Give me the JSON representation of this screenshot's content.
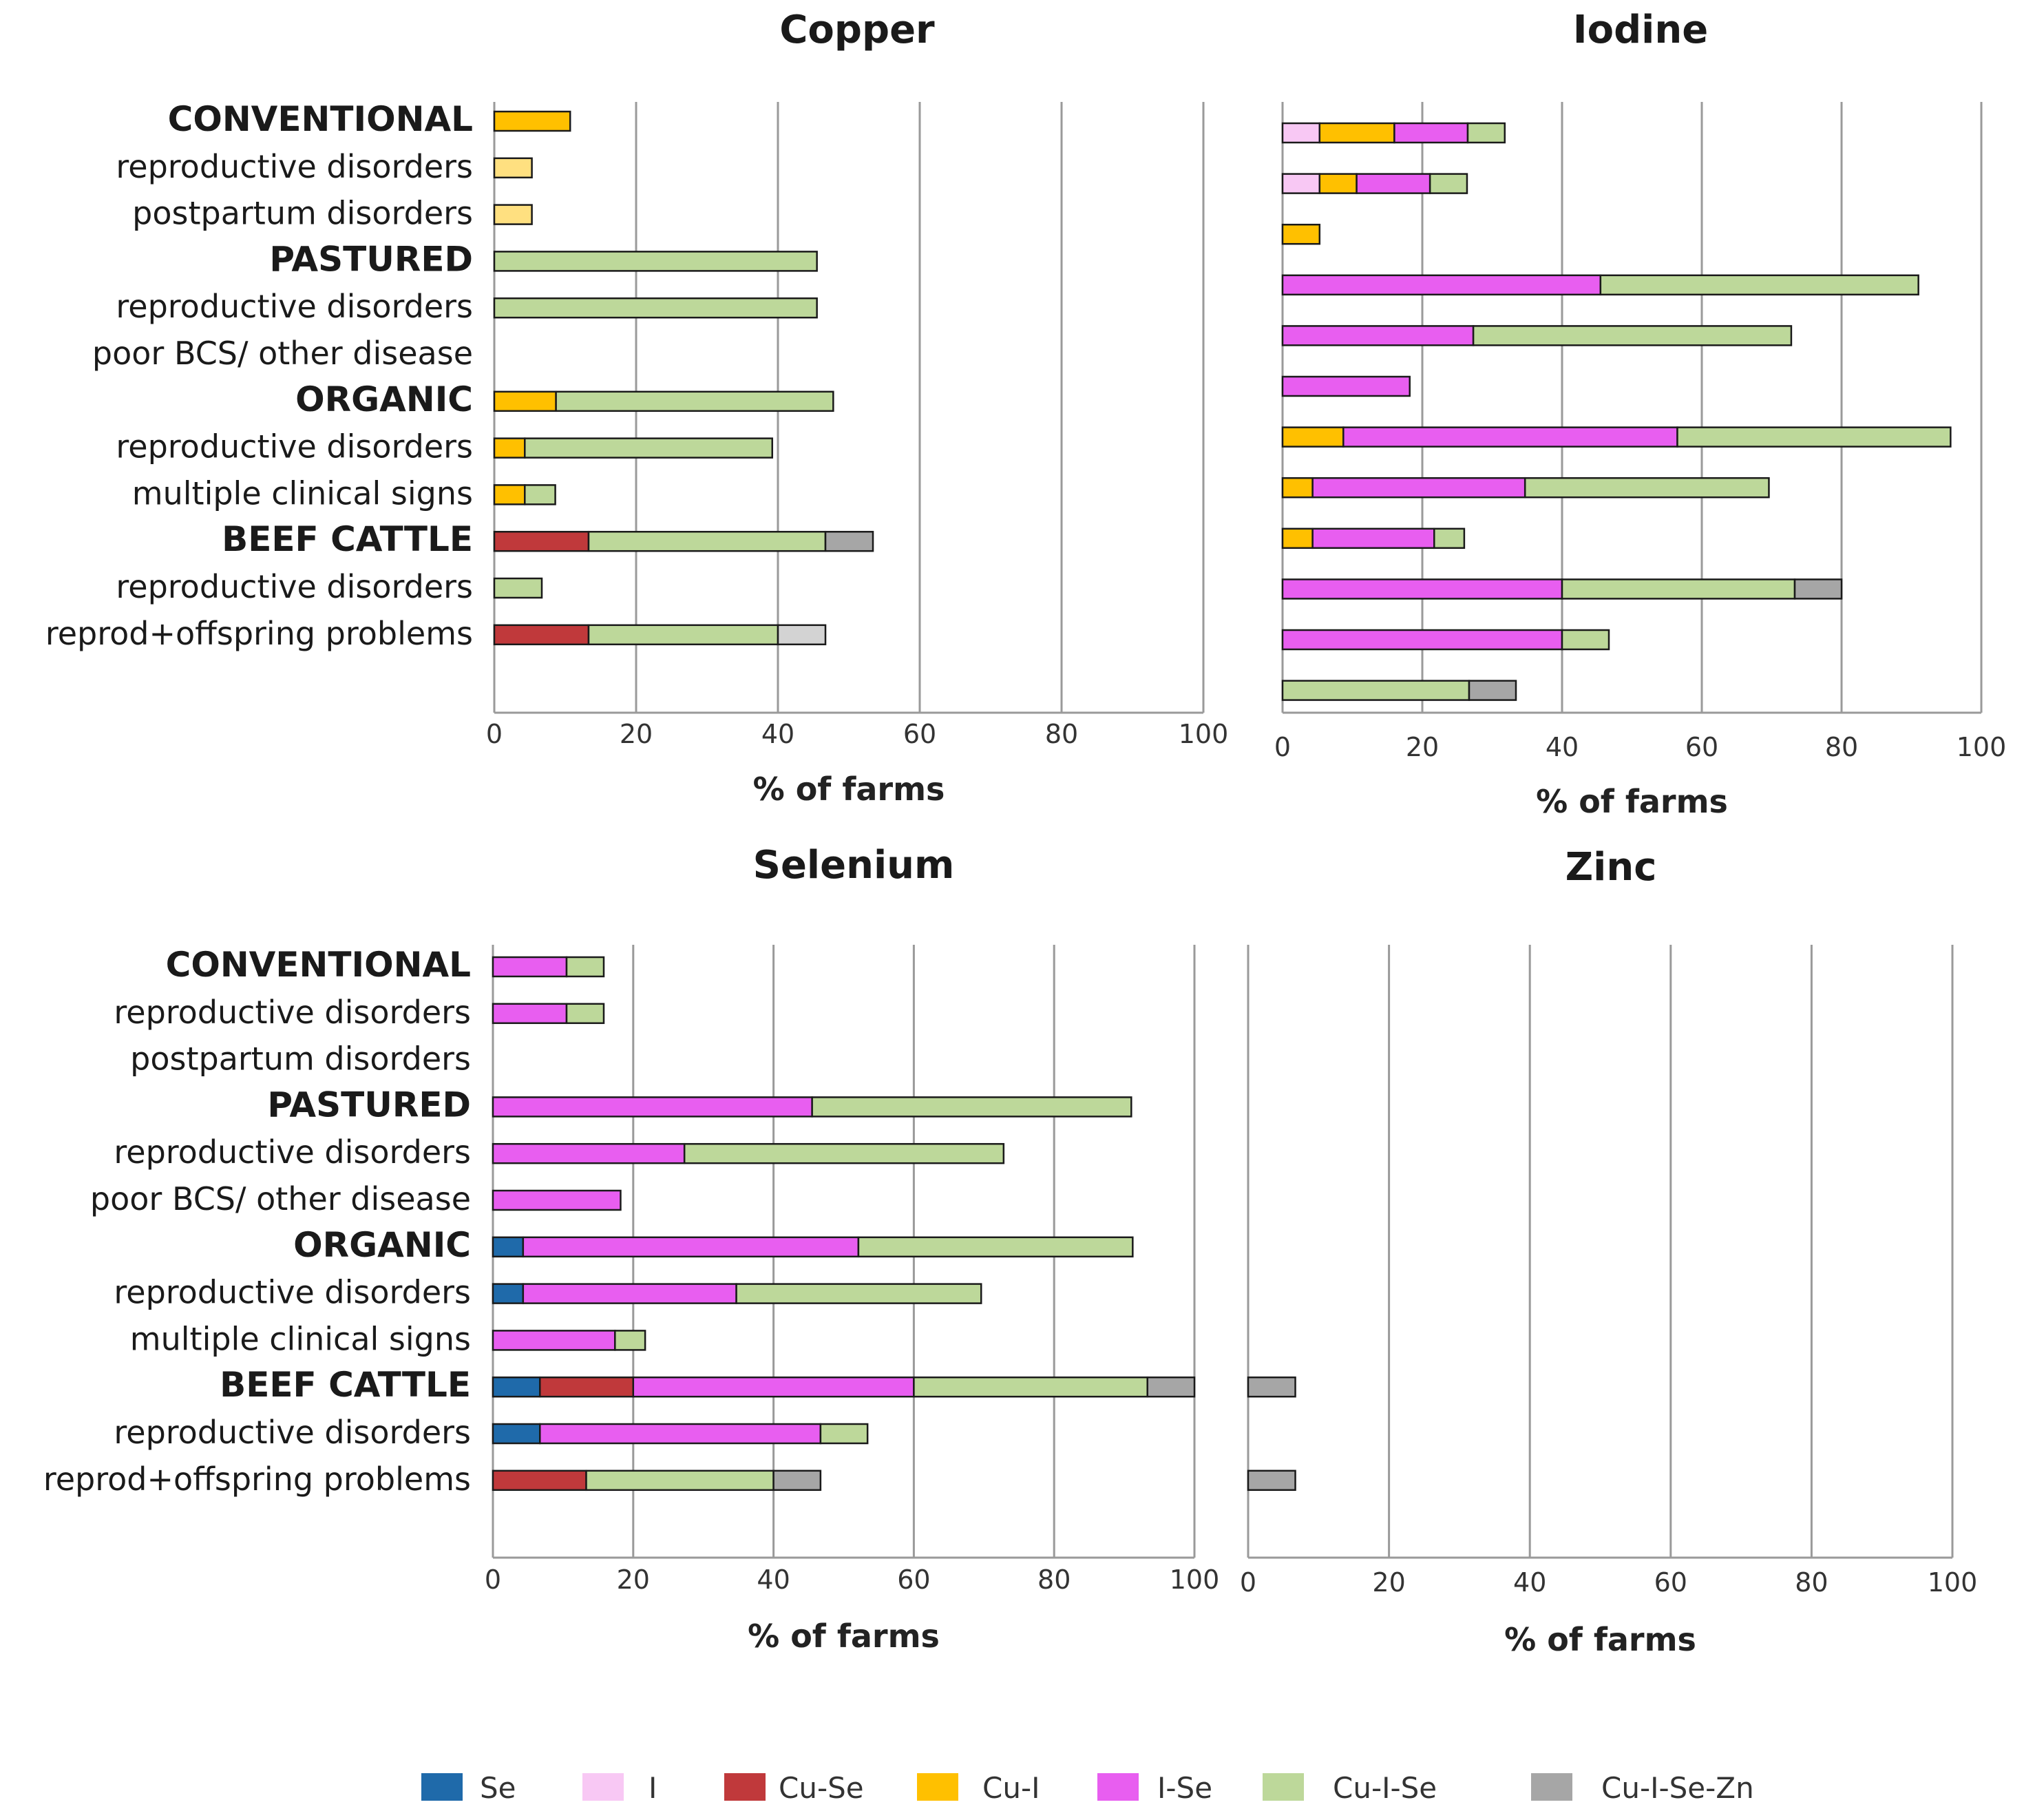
{
  "chart_data": {
    "type": "bar",
    "orientation": "horizontal",
    "stacked": true,
    "xlim": [
      0,
      100
    ],
    "xticks": [
      0,
      20,
      40,
      60,
      80,
      100
    ],
    "xlabel": "% of farms",
    "grid": true,
    "legend_position": "bottom",
    "series": [
      {
        "name": "Se",
        "color": "#1f6aaa"
      },
      {
        "name": "I",
        "color": "#f8c8f4"
      },
      {
        "name": "Cu-Se",
        "color": "#c0393b"
      },
      {
        "name": "Cu-I",
        "color": "#ffc000"
      },
      {
        "name": "I-Se",
        "color": "#e85ef0"
      },
      {
        "name": "Cu-I-Se",
        "color": "#bdd89a"
      },
      {
        "name": "Cu-I-Se-Zn",
        "color": "#a6a6a6"
      }
    ],
    "categories": [
      {
        "label": "CONVENTIONAL",
        "group": true
      },
      {
        "label": "reproductive disorders",
        "group": false
      },
      {
        "label": "postpartum disorders",
        "group": false
      },
      {
        "label": "PASTURED",
        "group": true
      },
      {
        "label": "reproductive disorders",
        "group": false
      },
      {
        "label": "poor BCS/ other disease",
        "group": false
      },
      {
        "label": "ORGANIC",
        "group": true
      },
      {
        "label": "reproductive disorders",
        "group": false
      },
      {
        "label": "multiple clinical signs",
        "group": false
      },
      {
        "label": "BEEF CATTLE",
        "group": true
      },
      {
        "label": "reproductive disorders",
        "group": false
      },
      {
        "label": "reprod+offspring problems",
        "group": false
      }
    ],
    "panels": [
      {
        "title": "Copper",
        "show_category_labels": true,
        "bars": [
          [
            {
              "s": "Cu-I",
              "v": 10.7
            }
          ],
          [
            {
              "s": "Cu-I",
              "v": 5.3,
              "light": true
            }
          ],
          [
            {
              "s": "Cu-I",
              "v": 5.3,
              "light": true
            }
          ],
          [
            {
              "s": "Cu-I-Se",
              "v": 45.5
            }
          ],
          [
            {
              "s": "Cu-I-Se",
              "v": 45.5
            }
          ],
          [],
          [
            {
              "s": "Cu-I",
              "v": 8.7
            },
            {
              "s": "Cu-I-Se",
              "v": 39.1
            }
          ],
          [
            {
              "s": "Cu-I",
              "v": 4.3
            },
            {
              "s": "Cu-I-Se",
              "v": 34.9
            }
          ],
          [
            {
              "s": "Cu-I",
              "v": 4.3
            },
            {
              "s": "Cu-I-Se",
              "v": 4.3
            }
          ],
          [
            {
              "s": "Cu-Se",
              "v": 13.3
            },
            {
              "s": "Cu-I-Se",
              "v": 33.4
            },
            {
              "s": "Cu-I-Se-Zn",
              "v": 6.7
            }
          ],
          [
            {
              "s": "Cu-I-Se",
              "v": 6.7
            }
          ],
          [
            {
              "s": "Cu-Se",
              "v": 13.3
            },
            {
              "s": "Cu-I-Se",
              "v": 26.7
            },
            {
              "s": "Cu-I-Se-Zn",
              "v": 6.7,
              "light": true
            }
          ]
        ]
      },
      {
        "title": "Iodine",
        "show_category_labels": false,
        "bars": [
          [
            {
              "s": "I",
              "v": 5.3
            },
            {
              "s": "Cu-I",
              "v": 10.7
            },
            {
              "s": "I-Se",
              "v": 10.5
            },
            {
              "s": "Cu-I-Se",
              "v": 5.3
            }
          ],
          [
            {
              "s": "I",
              "v": 5.3
            },
            {
              "s": "Cu-I",
              "v": 5.3
            },
            {
              "s": "I-Se",
              "v": 10.5
            },
            {
              "s": "Cu-I-Se",
              "v": 5.3
            }
          ],
          [
            {
              "s": "Cu-I",
              "v": 5.3
            }
          ],
          [
            {
              "s": "I-Se",
              "v": 45.5
            },
            {
              "s": "Cu-I-Se",
              "v": 45.5
            }
          ],
          [
            {
              "s": "I-Se",
              "v": 27.3
            },
            {
              "s": "Cu-I-Se",
              "v": 45.5
            }
          ],
          [
            {
              "s": "I-Se",
              "v": 18.2
            }
          ],
          [
            {
              "s": "Cu-I",
              "v": 8.7
            },
            {
              "s": "I-Se",
              "v": 47.8
            },
            {
              "s": "Cu-I-Se",
              "v": 39.1
            }
          ],
          [
            {
              "s": "Cu-I",
              "v": 4.3
            },
            {
              "s": "I-Se",
              "v": 30.4
            },
            {
              "s": "Cu-I-Se",
              "v": 34.9
            }
          ],
          [
            {
              "s": "Cu-I",
              "v": 4.3
            },
            {
              "s": "I-Se",
              "v": 17.4
            },
            {
              "s": "Cu-I-Se",
              "v": 4.3
            }
          ],
          [
            {
              "s": "I-Se",
              "v": 40.0
            },
            {
              "s": "Cu-I-Se",
              "v": 33.3
            },
            {
              "s": "Cu-I-Se-Zn",
              "v": 6.7
            }
          ],
          [
            {
              "s": "I-Se",
              "v": 40.0
            },
            {
              "s": "Cu-I-Se",
              "v": 6.7
            }
          ],
          [
            {
              "s": "Cu-I-Se",
              "v": 26.7
            },
            {
              "s": "Cu-I-Se-Zn",
              "v": 6.7
            }
          ]
        ]
      },
      {
        "title": "Selenium",
        "show_category_labels": true,
        "bars": [
          [
            {
              "s": "I-Se",
              "v": 10.5
            },
            {
              "s": "Cu-I-Se",
              "v": 5.3
            }
          ],
          [
            {
              "s": "I-Se",
              "v": 10.5
            },
            {
              "s": "Cu-I-Se",
              "v": 5.3
            }
          ],
          [],
          [
            {
              "s": "I-Se",
              "v": 45.5
            },
            {
              "s": "Cu-I-Se",
              "v": 45.5
            }
          ],
          [
            {
              "s": "I-Se",
              "v": 27.3
            },
            {
              "s": "Cu-I-Se",
              "v": 45.5
            }
          ],
          [
            {
              "s": "I-Se",
              "v": 18.2
            }
          ],
          [
            {
              "s": "Se",
              "v": 4.3
            },
            {
              "s": "I-Se",
              "v": 47.8
            },
            {
              "s": "Cu-I-Se",
              "v": 39.1
            }
          ],
          [
            {
              "s": "Se",
              "v": 4.3
            },
            {
              "s": "I-Se",
              "v": 30.4
            },
            {
              "s": "Cu-I-Se",
              "v": 34.9
            }
          ],
          [
            {
              "s": "I-Se",
              "v": 17.4
            },
            {
              "s": "Cu-I-Se",
              "v": 4.3
            }
          ],
          [
            {
              "s": "Se",
              "v": 6.7
            },
            {
              "s": "Cu-Se",
              "v": 13.3
            },
            {
              "s": "I-Se",
              "v": 40.0
            },
            {
              "s": "Cu-I-Se",
              "v": 33.3
            },
            {
              "s": "Cu-I-Se-Zn",
              "v": 6.7
            }
          ],
          [
            {
              "s": "Se",
              "v": 6.7
            },
            {
              "s": "I-Se",
              "v": 40.0
            },
            {
              "s": "Cu-I-Se",
              "v": 6.7
            }
          ],
          [
            {
              "s": "Cu-Se",
              "v": 13.3
            },
            {
              "s": "Cu-I-Se",
              "v": 26.7
            },
            {
              "s": "Cu-I-Se-Zn",
              "v": 6.7
            }
          ]
        ]
      },
      {
        "title": "Zinc",
        "show_category_labels": false,
        "bars": [
          [],
          [],
          [],
          [],
          [],
          [],
          [],
          [],
          [],
          [
            {
              "s": "Cu-I-Se-Zn",
              "v": 6.7
            }
          ],
          [],
          [
            {
              "s": "Cu-I-Se-Zn",
              "v": 6.7
            }
          ]
        ]
      }
    ]
  }
}
